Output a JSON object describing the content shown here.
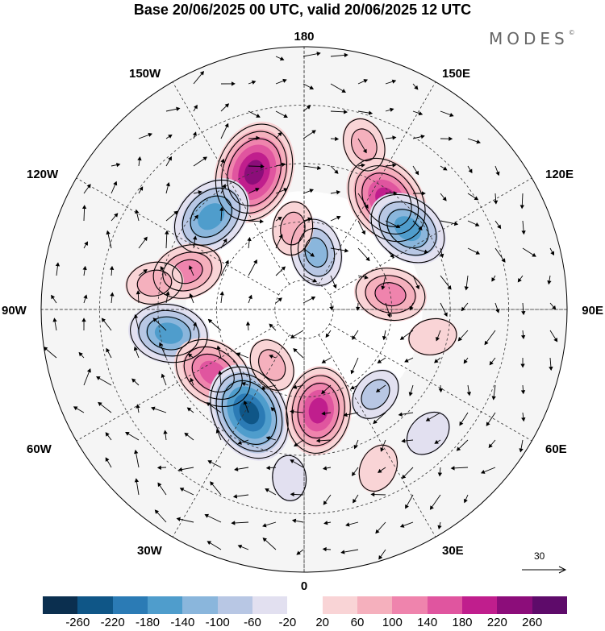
{
  "title": "Base 20/06/2025 00 UTC, valid 20/06/2025 12 UTC",
  "brand": "MODES",
  "brand_mark": "©",
  "longitude_labels": {
    "top": "180",
    "bottom": "0",
    "left": "90W",
    "right": "90E",
    "upper_left_1": "150W",
    "upper_left_2": "120W",
    "upper_right_1": "150E",
    "upper_right_2": "120E",
    "lower_left_1": "60W",
    "lower_left_2": "30W",
    "lower_right_1": "60E",
    "lower_right_2": "30E"
  },
  "reference_vector": "30",
  "colorbar": {
    "colors": [
      "#0b2f4f",
      "#0f5687",
      "#2b7bb5",
      "#4f9dcc",
      "#8ab6dc",
      "#b8c7e4",
      "#e2e0f0",
      "#ffffff",
      "#f9d4d6",
      "#f5b0bd",
      "#ef84ad",
      "#e0559f",
      "#c01e8d",
      "#8c0d7a",
      "#5e0b6a"
    ],
    "ticks": [
      "-260",
      "-220",
      "-180",
      "-140",
      "-100",
      "-60",
      "-20",
      "20",
      "60",
      "100",
      "140",
      "180",
      "220",
      "260"
    ]
  },
  "anomalies": [
    {
      "lat_deg": 40,
      "lon_deg": -160,
      "value": 230
    },
    {
      "lat_deg": 43,
      "lon_deg": 143,
      "value": 200
    },
    {
      "lat_deg": 45,
      "lon_deg": -135,
      "value": -170
    },
    {
      "lat_deg": 45,
      "lon_deg": 128,
      "value": -160
    },
    {
      "lat_deg": 70,
      "lon_deg": 168,
      "value": -110
    },
    {
      "lat_deg": 48,
      "lon_deg": -108,
      "value": 120
    },
    {
      "lat_deg": 43,
      "lon_deg": -80,
      "value": -150
    },
    {
      "lat_deg": 52,
      "lon_deg": -55,
      "value": 160
    },
    {
      "lat_deg": 50,
      "lon_deg": -28,
      "value": -220
    },
    {
      "lat_deg": 55,
      "lon_deg": 8,
      "value": 180
    },
    {
      "lat_deg": 60,
      "lon_deg": 100,
      "value": 120
    },
    {
      "lat_deg": 45,
      "lon_deg": 78,
      "value": 40
    },
    {
      "lat_deg": 52,
      "lon_deg": 40,
      "value": -60
    },
    {
      "lat_deg": 30,
      "lon_deg": 25,
      "value": 40
    },
    {
      "lat_deg": 32,
      "lon_deg": -5,
      "value": -30
    },
    {
      "lat_deg": 38,
      "lon_deg": -100,
      "value": 70
    },
    {
      "lat_deg": 30,
      "lon_deg": 45,
      "value": -40
    },
    {
      "lat_deg": 62,
      "lon_deg": -172,
      "value": 60
    },
    {
      "lat_deg": 30,
      "lon_deg": 160,
      "value": 60
    },
    {
      "lat_deg": 68,
      "lon_deg": -30,
      "value": 60
    }
  ]
}
